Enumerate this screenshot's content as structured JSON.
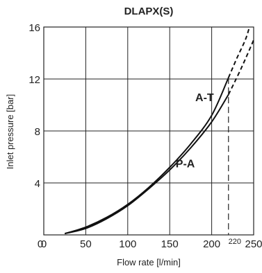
{
  "chart_data": {
    "type": "line",
    "title": "DLAPX(S)",
    "xlabel": "Flow rate [l/min]",
    "ylabel": "Inlet pressure [bar]",
    "xlim": [
      0,
      250
    ],
    "ylim": [
      0,
      16
    ],
    "xticks": [
      0,
      50,
      100,
      150,
      200,
      250
    ],
    "xtick_labels": [
      "0",
      "50",
      "100",
      "150",
      "200",
      "250"
    ],
    "yticks": [
      4,
      8,
      12,
      16
    ],
    "ytick_labels": [
      "4",
      "8",
      "12",
      "16"
    ],
    "grid": true,
    "marker_line": {
      "x": 220,
      "label": "220"
    },
    "series": [
      {
        "name": "A-T",
        "solid": [
          [
            25,
            0.1
          ],
          [
            50,
            0.6
          ],
          [
            75,
            1.35
          ],
          [
            100,
            2.35
          ],
          [
            125,
            3.65
          ],
          [
            150,
            5.2
          ],
          [
            175,
            7.0
          ],
          [
            200,
            9.2
          ],
          [
            220,
            12.1
          ]
        ],
        "dashed": [
          [
            220,
            12.1
          ],
          [
            230,
            13.6
          ],
          [
            240,
            15.0
          ],
          [
            245,
            16.0
          ]
        ]
      },
      {
        "name": "P-A",
        "solid": [
          [
            25,
            0.1
          ],
          [
            50,
            0.5
          ],
          [
            75,
            1.25
          ],
          [
            100,
            2.25
          ],
          [
            125,
            3.55
          ],
          [
            150,
            5.0
          ],
          [
            175,
            6.7
          ],
          [
            200,
            8.7
          ],
          [
            220,
            10.8
          ]
        ],
        "dashed": [
          [
            220,
            10.8
          ],
          [
            235,
            12.8
          ],
          [
            250,
            15.0
          ]
        ]
      }
    ],
    "series_labels": [
      {
        "text": "A-T",
        "x": 218,
        "y": 10.3
      },
      {
        "text": "P-A",
        "x": 195,
        "y": 5.2
      }
    ]
  }
}
